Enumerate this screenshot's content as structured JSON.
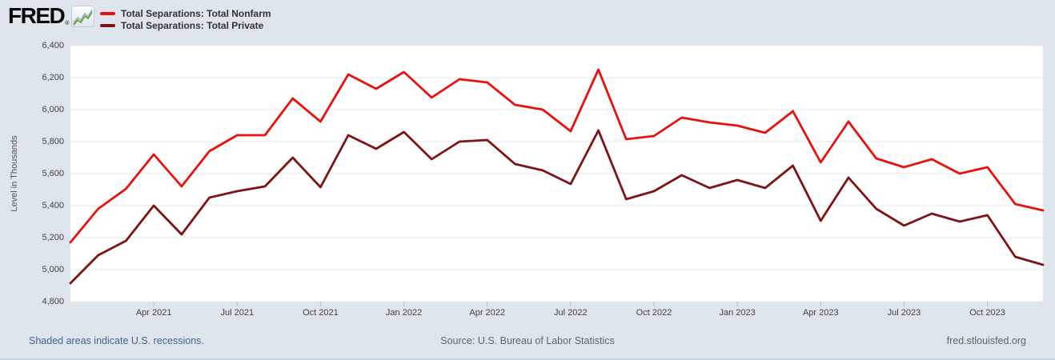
{
  "header": {
    "logo_text": "FRED",
    "logo_registered": "®"
  },
  "footer": {
    "recessions_note": "Shaded areas indicate U.S. recessions.",
    "source": "Source: U.S. Bureau of Labor Statistics",
    "site": "fred.stlouisfed.org"
  },
  "colors": {
    "background": "#dfe5ec",
    "plot_background": "#ffffff",
    "gridline": "#e8e8e8",
    "tick_mark": "#b2c1d0",
    "axis_text": "#424242",
    "nonfarm_red": "#e8110d",
    "private_dark_red": "#7d1313",
    "footer_link": "#3f6492",
    "muted_text": "#5c6770",
    "logo_icon_green": "#6f9e3f",
    "logo_icon_blue": "#9bb3c9"
  },
  "chart_data": {
    "type": "line",
    "title": "",
    "xlabel": "",
    "ylabel": "Level in Thousands",
    "ylim": [
      4800,
      6400
    ],
    "ytick_interval": 200,
    "yticks": [
      "6,400",
      "6,200",
      "6,000",
      "5,800",
      "5,600",
      "5,400",
      "5,200",
      "5,000",
      "4,800"
    ],
    "grid": "horizontal",
    "legend_position": "top-left",
    "x": [
      "Jan 2021",
      "Feb 2021",
      "Mar 2021",
      "Apr 2021",
      "May 2021",
      "Jun 2021",
      "Jul 2021",
      "Aug 2021",
      "Sep 2021",
      "Oct 2021",
      "Nov 2021",
      "Dec 2021",
      "Jan 2022",
      "Feb 2022",
      "Mar 2022",
      "Apr 2022",
      "May 2022",
      "Jun 2022",
      "Jul 2022",
      "Aug 2022",
      "Sep 2022",
      "Oct 2022",
      "Nov 2022",
      "Dec 2022",
      "Jan 2023",
      "Feb 2023",
      "Mar 2023",
      "Apr 2023",
      "May 2023",
      "Jun 2023",
      "Jul 2023",
      "Aug 2023",
      "Sep 2023",
      "Oct 2023",
      "Nov 2023",
      "Dec 2023"
    ],
    "xtick_labels": [
      "Apr 2021",
      "Jul 2021",
      "Oct 2021",
      "Jan 2022",
      "Apr 2022",
      "Jul 2022",
      "Oct 2022",
      "Jan 2023",
      "Apr 2023",
      "Jul 2023",
      "Oct 2023"
    ],
    "xtick_indices": [
      3,
      6,
      9,
      12,
      15,
      18,
      21,
      24,
      27,
      30,
      33
    ],
    "series": [
      {
        "key": "total-nonfarm",
        "name": "Total Separations: Total Nonfarm",
        "color": "#e8110d",
        "values": [
          5170,
          5380,
          5505,
          5720,
          5520,
          5740,
          5840,
          5840,
          6070,
          5925,
          6220,
          6130,
          6235,
          6075,
          6190,
          6170,
          6030,
          6000,
          5865,
          6250,
          5815,
          5835,
          5950,
          5920,
          5900,
          5855,
          5990,
          5670,
          5925,
          5695,
          5640,
          5690,
          5600,
          5640,
          5410,
          5370
        ]
      },
      {
        "key": "total-private",
        "name": "Total Separations: Total Private",
        "color": "#7d1313",
        "values": [
          4915,
          5090,
          5180,
          5400,
          5220,
          5450,
          5490,
          5520,
          5700,
          5515,
          5840,
          5755,
          5860,
          5690,
          5800,
          5810,
          5660,
          5620,
          5535,
          5870,
          5440,
          5490,
          5590,
          5510,
          5560,
          5510,
          5650,
          5305,
          5575,
          5380,
          5275,
          5350,
          5300,
          5340,
          5080,
          5030
        ]
      }
    ]
  }
}
